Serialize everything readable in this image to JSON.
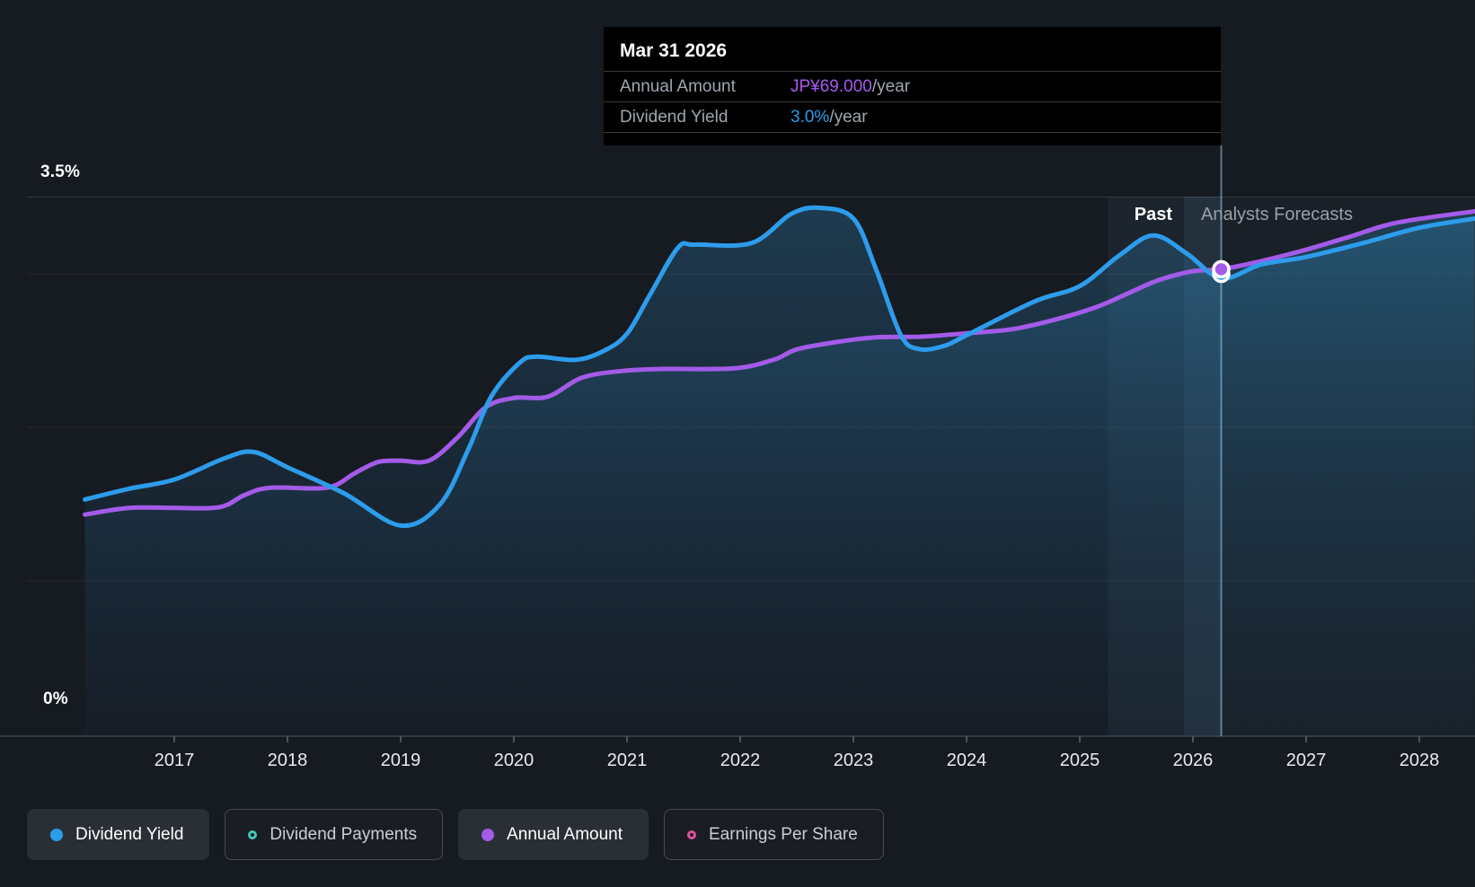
{
  "tooltip": {
    "date": "Mar 31 2026",
    "rows": [
      {
        "label": "Annual Amount",
        "value": "JP¥69.000",
        "suffix": "/year",
        "color": "#a958f0"
      },
      {
        "label": "Dividend Yield",
        "value": "3.0%",
        "suffix": "/year",
        "color": "#2e9be8"
      }
    ]
  },
  "regions": {
    "past": "Past",
    "forecast": "Analysts Forecasts"
  },
  "axis": {
    "y_top": "3.5%",
    "y_zero": "0%",
    "years": [
      "2017",
      "2018",
      "2019",
      "2020",
      "2021",
      "2022",
      "2023",
      "2024",
      "2025",
      "2026",
      "2027",
      "2028"
    ]
  },
  "legend": {
    "items": [
      {
        "label": "Dividend Yield",
        "color": "#2d9ceb",
        "active": true,
        "name": "dividend-yield"
      },
      {
        "label": "Dividend Payments",
        "color": "#43c8b7",
        "active": false,
        "name": "dividend-payments"
      },
      {
        "label": "Annual Amount",
        "color": "#a35be8",
        "active": true,
        "name": "annual-amount"
      },
      {
        "label": "Earnings Per Share",
        "color": "#e0519e",
        "active": false,
        "name": "earnings-per-share"
      }
    ]
  },
  "chart_data": {
    "type": "line",
    "title": "Dividend history and forecast",
    "x_range": [
      2016.21,
      2028.49
    ],
    "x_ticks": [
      2017,
      2018,
      2019,
      2020,
      2021,
      2022,
      2023,
      2024,
      2025,
      2026,
      2027,
      2028
    ],
    "past_forecast_divider_x": 2025.92,
    "hover_band_x": [
      2025.25,
      2026.25
    ],
    "grid_pct_lines": [
      3.5,
      3.0,
      2.0,
      1.0,
      0
    ],
    "legend_position": "bottom",
    "series": [
      {
        "name": "Dividend Yield",
        "unit": "%",
        "color": "#2d9ceb",
        "visible": true,
        "ylim": [
          0,
          3.5
        ],
        "points": [
          [
            2016.21,
            1.53
          ],
          [
            2016.6,
            1.6
          ],
          [
            2017,
            1.66
          ],
          [
            2017.45,
            1.8
          ],
          [
            2017.7,
            1.84
          ],
          [
            2018,
            1.74
          ],
          [
            2018.5,
            1.57
          ],
          [
            2019,
            1.36
          ],
          [
            2019.35,
            1.5
          ],
          [
            2019.6,
            1.86
          ],
          [
            2019.8,
            2.2
          ],
          [
            2020.05,
            2.42
          ],
          [
            2020.2,
            2.46
          ],
          [
            2020.55,
            2.44
          ],
          [
            2020.8,
            2.5
          ],
          [
            2021,
            2.61
          ],
          [
            2021.2,
            2.86
          ],
          [
            2021.45,
            3.17
          ],
          [
            2021.6,
            3.19
          ],
          [
            2022.1,
            3.2
          ],
          [
            2022.45,
            3.39
          ],
          [
            2022.7,
            3.43
          ],
          [
            2023,
            3.36
          ],
          [
            2023.2,
            3.03
          ],
          [
            2023.42,
            2.6
          ],
          [
            2023.58,
            2.51
          ],
          [
            2023.8,
            2.53
          ],
          [
            2024,
            2.6
          ],
          [
            2024.6,
            2.82
          ],
          [
            2025,
            2.92
          ],
          [
            2025.35,
            3.12
          ],
          [
            2025.65,
            3.25
          ],
          [
            2025.95,
            3.13
          ],
          [
            2026.25,
            2.97
          ],
          [
            2026.6,
            3.06
          ],
          [
            2027,
            3.11
          ],
          [
            2027.5,
            3.2
          ],
          [
            2028,
            3.3
          ],
          [
            2028.49,
            3.36
          ]
        ]
      },
      {
        "name": "Annual Amount",
        "unit": "JP¥/year",
        "color": "#a35be8",
        "visible": true,
        "points": [
          [
            2016.21,
            32.6
          ],
          [
            2016.6,
            33.6
          ],
          [
            2017,
            33.6
          ],
          [
            2017.4,
            33.7
          ],
          [
            2017.62,
            35.5
          ],
          [
            2017.85,
            36.6
          ],
          [
            2018.35,
            36.6
          ],
          [
            2018.6,
            38.8
          ],
          [
            2018.8,
            40.4
          ],
          [
            2019,
            40.6
          ],
          [
            2019.25,
            40.6
          ],
          [
            2019.5,
            44.0
          ],
          [
            2019.75,
            48.5
          ],
          [
            2020,
            49.9
          ],
          [
            2020.3,
            50.1
          ],
          [
            2020.6,
            52.9
          ],
          [
            2020.95,
            53.9
          ],
          [
            2021.3,
            54.2
          ],
          [
            2021.95,
            54.3
          ],
          [
            2022.3,
            55.6
          ],
          [
            2022.5,
            57.1
          ],
          [
            2022.85,
            58.2
          ],
          [
            2023.2,
            58.9
          ],
          [
            2023.6,
            59.0
          ],
          [
            2024,
            59.5
          ],
          [
            2024.4,
            60.1
          ],
          [
            2024.8,
            61.6
          ],
          [
            2025.15,
            63.4
          ],
          [
            2025.45,
            65.6
          ],
          [
            2025.7,
            67.4
          ],
          [
            2026,
            68.7
          ],
          [
            2026.25,
            69.0
          ],
          [
            2026.6,
            70.2
          ],
          [
            2027,
            71.9
          ],
          [
            2027.4,
            73.9
          ],
          [
            2027.8,
            75.9
          ],
          [
            2028.49,
            77.6
          ]
        ]
      },
      {
        "name": "Dividend Payments",
        "color": "#43c8b7",
        "visible": false,
        "points": []
      },
      {
        "name": "Earnings Per Share",
        "color": "#e0519e",
        "visible": false,
        "points": []
      }
    ],
    "markers": [
      {
        "series": "Annual Amount",
        "x": 2026.25,
        "value": 69.0,
        "display": "JP¥69.000/year"
      },
      {
        "series": "Dividend Yield",
        "x": 2026.25,
        "value": 3.0,
        "display": "3.0%/year"
      }
    ]
  }
}
